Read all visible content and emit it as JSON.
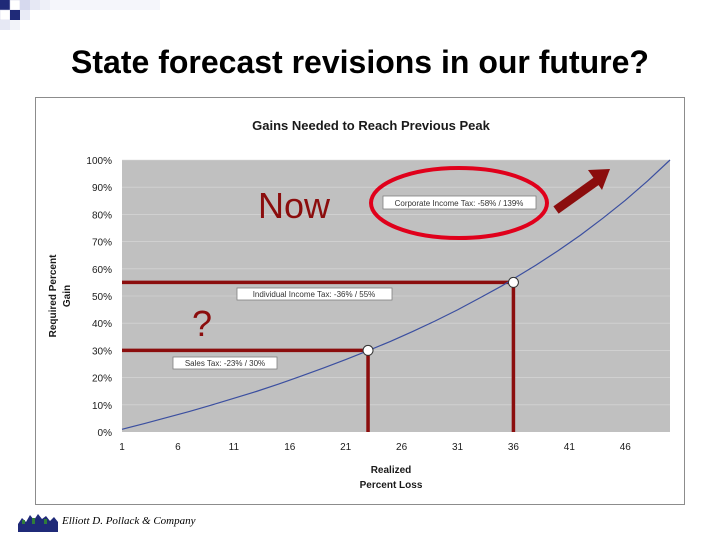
{
  "slide": {
    "title": "State forecast revisions in our future?",
    "footer": "Elliott D. Pollack & Company"
  },
  "chart_data": {
    "type": "line",
    "title": "Gains Needed to Reach Previous Peak",
    "xlabel_lines": [
      "Realized",
      "Percent Loss"
    ],
    "ylabel_lines": [
      "Required Percent",
      "Gain"
    ],
    "x_ticks": [
      1,
      6,
      11,
      16,
      21,
      26,
      31,
      36,
      41,
      46
    ],
    "y_ticks": [
      "0%",
      "10%",
      "20%",
      "30%",
      "40%",
      "50%",
      "60%",
      "70%",
      "80%",
      "90%",
      "100%"
    ],
    "xlim": [
      1,
      50
    ],
    "ylim": [
      0,
      100
    ],
    "grid": "horizontal",
    "series": [
      {
        "x": [
          1,
          3,
          5,
          7,
          9,
          11,
          13,
          15,
          17,
          19,
          21,
          23,
          25,
          27,
          29,
          31,
          33,
          35,
          36,
          38,
          40,
          42,
          44,
          46,
          48,
          50
        ],
        "y": [
          1.0,
          3.1,
          5.3,
          7.5,
          9.9,
          12.4,
          14.9,
          17.6,
          20.5,
          23.5,
          26.6,
          29.9,
          33.3,
          37.0,
          40.8,
          44.9,
          49.3,
          53.8,
          56.3,
          61.3,
          66.7,
          72.4,
          78.6,
          85.2,
          92.3,
          100.0
        ],
        "color": "#3b4fa0"
      }
    ],
    "markers": [
      {
        "x": 23,
        "y": 30
      },
      {
        "x": 36,
        "y": 55
      }
    ],
    "callouts": {
      "corporate": "Corporate Income Tax: -58% / 139%",
      "individual": "Individual Income Tax: -36% / 55%",
      "sales": "Sales Tax: -23% / 30%"
    },
    "annotations": {
      "now": "Now",
      "question": "?"
    },
    "colors": {
      "plot_bg": "#c0c0c0",
      "accent": "#8b0d0d",
      "circle": "#e0001b",
      "grid": "#d9d9d9"
    }
  }
}
